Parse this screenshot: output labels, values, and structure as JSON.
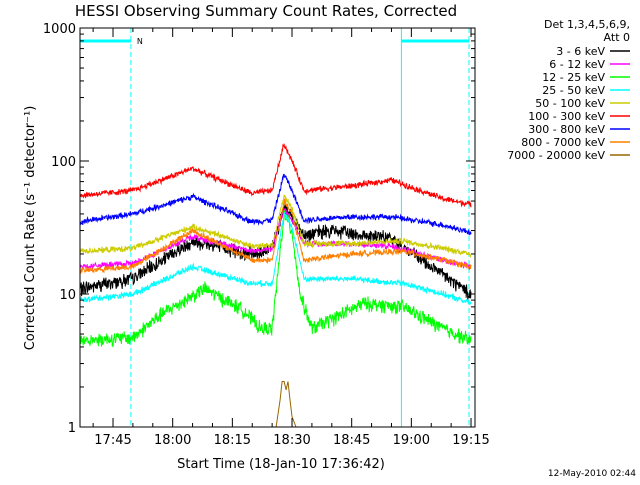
{
  "chart_data": {
    "type": "line",
    "title": "HESSI Observing Summary Count Rates, Corrected",
    "ylabel": "Corrected Count Rate (s⁻¹ detector⁻¹)",
    "xlabel": "Start Time (18-Jan-10 17:36:42)",
    "y_scale": "log",
    "ylim": [
      1,
      1000
    ],
    "xlim": [
      "17:36:42",
      "19:16:00"
    ],
    "x_ticks": [
      "17:45",
      "18:00",
      "18:15",
      "18:30",
      "18:45",
      "19:00",
      "19:15"
    ],
    "y_ticks": [
      "1",
      "10",
      "100",
      "1000"
    ],
    "legend_header": [
      "Det 1,3,4,5,6,9,",
      "Att 0"
    ],
    "legend_position": "right",
    "timestamp": "12-May-2010 02:44",
    "night_marker": "N",
    "series": [
      {
        "name": "3 - 6 keV",
        "color": "#000000",
        "x": [
          "17:36:42",
          "17:50",
          "18:05",
          "18:20",
          "18:25",
          "18:28",
          "18:30",
          "18:33",
          "18:40",
          "18:55",
          "19:05",
          "19:15"
        ],
        "y": [
          11,
          13,
          25,
          20,
          22,
          45,
          38,
          28,
          30,
          26,
          16,
          10
        ]
      },
      {
        "name": "6 - 12 keV",
        "color": "#ff00ff",
        "x": [
          "17:36:42",
          "17:50",
          "18:05",
          "18:20",
          "18:25",
          "18:28",
          "18:30",
          "18:33",
          "18:40",
          "18:55",
          "19:05",
          "19:15"
        ],
        "y": [
          16,
          17,
          27,
          21,
          22,
          43,
          36,
          24,
          24,
          23,
          19,
          16
        ]
      },
      {
        "name": "12 - 25 keV",
        "color": "#00ff00",
        "x": [
          "17:36:42",
          "17:50",
          "17:57",
          "18:08",
          "18:18",
          "18:22",
          "18:25",
          "18:28",
          "18:30",
          "18:32",
          "18:35",
          "18:48",
          "18:58",
          "19:08",
          "19:15"
        ],
        "y": [
          4.5,
          4.7,
          7,
          11,
          7.5,
          5.5,
          5.5,
          40,
          30,
          10,
          5.5,
          8.5,
          8,
          5.5,
          4.5
        ]
      },
      {
        "name": "25 - 50 keV",
        "color": "#00ffff",
        "x": [
          "17:36:42",
          "17:50",
          "18:05",
          "18:20",
          "18:25",
          "18:28",
          "18:30",
          "18:33",
          "18:45",
          "18:58",
          "19:08",
          "19:15"
        ],
        "y": [
          9,
          10,
          16,
          12,
          12,
          40,
          32,
          13,
          13,
          12,
          10,
          8.5
        ]
      },
      {
        "name": "50 - 100 keV",
        "color": "#cccc00",
        "x": [
          "17:36:42",
          "17:50",
          "18:05",
          "18:20",
          "18:25",
          "18:28",
          "18:30",
          "18:33",
          "18:45",
          "18:58",
          "19:08",
          "19:15"
        ],
        "y": [
          21,
          22,
          32,
          23,
          23,
          55,
          44,
          24,
          24,
          25,
          22,
          20
        ]
      },
      {
        "name": "100 - 300 keV",
        "color": "#ff0000",
        "x": [
          "17:36:42",
          "17:50",
          "18:05",
          "18:20",
          "18:25",
          "18:28",
          "18:30",
          "18:33",
          "18:45",
          "18:55",
          "19:08",
          "19:15"
        ],
        "y": [
          55,
          60,
          88,
          57,
          60,
          135,
          100,
          60,
          65,
          72,
          52,
          47
        ]
      },
      {
        "name": "300 - 800 keV",
        "color": "#0000ff",
        "x": [
          "17:36:42",
          "17:50",
          "18:05",
          "18:20",
          "18:25",
          "18:28",
          "18:30",
          "18:33",
          "18:45",
          "18:55",
          "19:08",
          "19:15"
        ],
        "y": [
          35,
          40,
          54,
          35,
          36,
          80,
          60,
          36,
          38,
          38,
          33,
          29
        ]
      },
      {
        "name": "800 - 7000 keV",
        "color": "#ff8000",
        "x": [
          "17:36:42",
          "17:50",
          "18:05",
          "18:20",
          "18:25",
          "18:28",
          "18:30",
          "18:33",
          "18:45",
          "18:58",
          "19:08",
          "19:15"
        ],
        "y": [
          15,
          16,
          30,
          18,
          18,
          50,
          40,
          18,
          20,
          21,
          18,
          16
        ]
      },
      {
        "name": "7000 - 20000 keV",
        "color": "#996600",
        "x": [
          "18:26",
          "18:27",
          "18:27.5",
          "18:28",
          "18:28.5",
          "18:29",
          "18:29.5",
          "18:30",
          "18:31"
        ],
        "y": [
          1,
          1.6,
          2.2,
          2.2,
          1.9,
          2.2,
          1.6,
          1.2,
          1
        ]
      }
    ],
    "saa_bars": [
      [
        "17:36:42",
        "17:49:30"
      ],
      [
        "18:57:30",
        "19:14:30"
      ]
    ],
    "vertical_markers": {
      "dashed": [
        "17:49:30",
        "19:14:30"
      ],
      "solid": [
        "17:36:42",
        "18:57:30"
      ]
    }
  }
}
